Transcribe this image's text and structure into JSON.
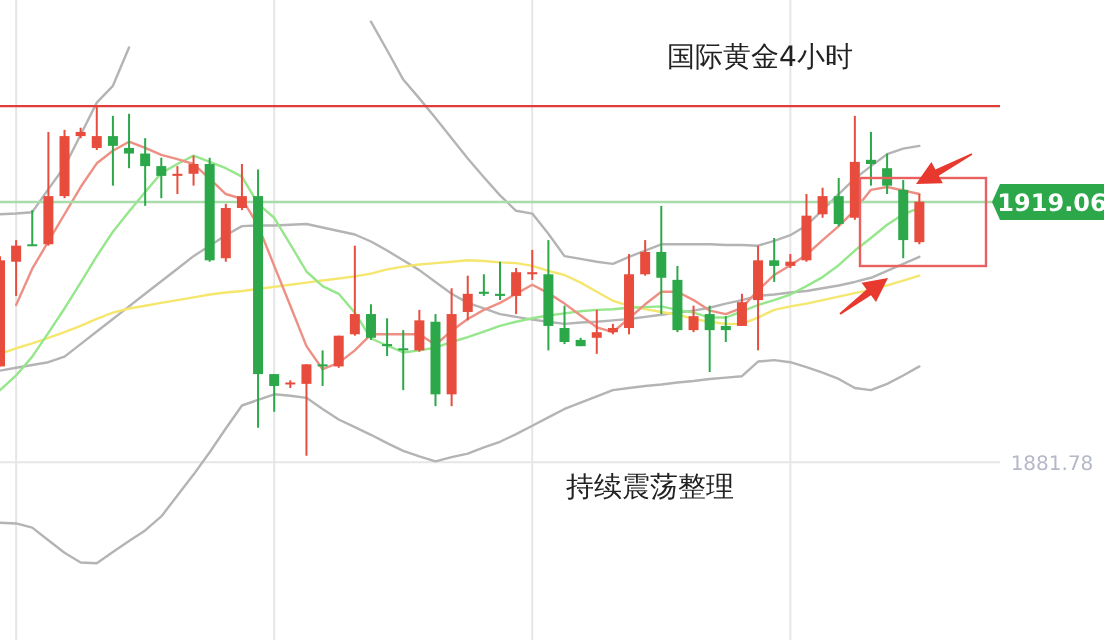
{
  "chart_data": {
    "type": "candlestick",
    "title": "国际黄金4小时",
    "annotations": [
      "持续震荡整理"
    ],
    "categories": [
      null,
      null,
      null,
      null,
      null,
      null,
      null,
      null,
      null,
      null,
      null,
      null,
      null,
      null,
      null,
      null,
      null,
      null,
      null,
      null,
      null,
      null,
      null,
      null,
      null,
      null,
      null,
      null,
      null,
      null,
      null,
      null,
      null,
      null,
      null,
      null,
      null,
      null,
      null,
      null,
      null,
      null,
      null,
      null,
      null,
      null,
      null,
      null,
      null,
      null,
      null,
      null,
      null,
      null,
      null,
      null,
      null,
      null
    ],
    "ohlc": [
      [
        1895.5,
        1911.3,
        1895.5,
        1910.7
      ],
      [
        1910.5,
        1913.6,
        1905.6,
        1912.8
      ],
      [
        1913.0,
        1917.9,
        1912.8,
        1912.8
      ],
      [
        1913.0,
        1929.1,
        1912.8,
        1919.9
      ],
      [
        1919.9,
        1929.4,
        1919.6,
        1928.5
      ],
      [
        1928.5,
        1929.7,
        1928.2,
        1929.1
      ],
      [
        1926.8,
        1932.8,
        1926.5,
        1928.5
      ],
      [
        1928.5,
        1931.4,
        1921.4,
        1927.1
      ],
      [
        1926.8,
        1931.7,
        1923.9,
        1926.0
      ],
      [
        1926.0,
        1928.2,
        1918.5,
        1924.2
      ],
      [
        1924.2,
        1925.4,
        1919.6,
        1922.8
      ],
      [
        1922.8,
        1924.2,
        1920.2,
        1923.1
      ],
      [
        1923.1,
        1925.7,
        1921.4,
        1924.5
      ],
      [
        1924.5,
        1925.4,
        1910.5,
        1910.7
      ],
      [
        1911.0,
        1918.8,
        1910.5,
        1918.2
      ],
      [
        1918.2,
        1924.5,
        1917.9,
        1919.9
      ],
      [
        1919.9,
        1923.7,
        1886.7,
        1894.4
      ],
      [
        1894.4,
        1894.4,
        1889.0,
        1892.7
      ],
      [
        1893.0,
        1893.5,
        1892.4,
        1893.2
      ],
      [
        1893.0,
        1895.8,
        1882.7,
        1895.8
      ],
      [
        1895.8,
        1897.8,
        1892.7,
        1895.5
      ],
      [
        1895.5,
        1899.9,
        1895.3,
        1899.9
      ],
      [
        1900.1,
        1912.8,
        1899.9,
        1903.0
      ],
      [
        1903.0,
        1904.4,
        1899.3,
        1899.6
      ],
      [
        1898.7,
        1902.4,
        1897.0,
        1898.4
      ],
      [
        1898.1,
        1900.7,
        1892.1,
        1897.8
      ],
      [
        1897.8,
        1903.6,
        1897.6,
        1902.1
      ],
      [
        1901.9,
        1903.0,
        1889.8,
        1891.5
      ],
      [
        1891.5,
        1906.7,
        1889.8,
        1903.0
      ],
      [
        1903.3,
        1908.5,
        1902.1,
        1905.9
      ],
      [
        1906.2,
        1908.7,
        1905.6,
        1905.9
      ],
      [
        1905.9,
        1910.5,
        1905.0,
        1905.6
      ],
      [
        1905.6,
        1909.6,
        1903.0,
        1909.0
      ],
      [
        1908.7,
        1912.2,
        1907.9,
        1909.0
      ],
      [
        1908.7,
        1913.6,
        1897.8,
        1901.3
      ],
      [
        1901.0,
        1904.2,
        1898.7,
        1899.0
      ],
      [
        1899.3,
        1899.6,
        1898.4,
        1898.4
      ],
      [
        1899.6,
        1903.6,
        1897.3,
        1900.4
      ],
      [
        1900.4,
        1901.6,
        1900.1,
        1901.0
      ],
      [
        1901.0,
        1911.6,
        1900.1,
        1908.7
      ],
      [
        1908.7,
        1913.6,
        1908.5,
        1911.9
      ],
      [
        1911.9,
        1918.5,
        1903.0,
        1908.2
      ],
      [
        1907.9,
        1909.9,
        1900.4,
        1900.7
      ],
      [
        1900.7,
        1904.2,
        1900.4,
        1902.7
      ],
      [
        1903.0,
        1904.2,
        1894.7,
        1900.7
      ],
      [
        1901.3,
        1902.7,
        1899.0,
        1900.7
      ],
      [
        1901.3,
        1905.9,
        1901.3,
        1904.7
      ],
      [
        1905.0,
        1912.8,
        1897.8,
        1910.7
      ],
      [
        1910.7,
        1913.9,
        1907.6,
        1909.9
      ],
      [
        1909.9,
        1911.6,
        1909.6,
        1910.5
      ],
      [
        1910.7,
        1920.2,
        1910.5,
        1917.1
      ],
      [
        1917.3,
        1921.1,
        1916.8,
        1919.9
      ],
      [
        1919.9,
        1922.5,
        1915.6,
        1915.9
      ],
      [
        1916.8,
        1931.4,
        1916.5,
        1924.8
      ],
      [
        1925.1,
        1929.1,
        1921.4,
        1924.5
      ],
      [
        1923.9,
        1926.0,
        1920.2,
        1921.4
      ],
      [
        1920.8,
        1922.2,
        1911.0,
        1913.6
      ],
      [
        1913.3,
        1920.2,
        1913.0,
        1919.1
      ]
    ],
    "colors": [
      "#e84c3d",
      "#e84c3d",
      "#2ca84a",
      "#e84c3d",
      "#e84c3d",
      "#e84c3d",
      "#e84c3d",
      "#2ca84a",
      "#2ca84a",
      "#2ca84a",
      "#2ca84a",
      "#e84c3d",
      "#e84c3d",
      "#2ca84a",
      "#e84c3d",
      "#e84c3d",
      "#2ca84a",
      "#2ca84a",
      "#e84c3d",
      "#e84c3d",
      "#2ca84a",
      "#e84c3d",
      "#e84c3d",
      "#2ca84a",
      "#2ca84a",
      "#2ca84a",
      "#e84c3d",
      "#2ca84a",
      "#e84c3d",
      "#e84c3d",
      "#2ca84a",
      "#2ca84a",
      "#e84c3d",
      "#e84c3d",
      "#2ca84a",
      "#2ca84a",
      "#2ca84a",
      "#e84c3d",
      "#e84c3d",
      "#e84c3d",
      "#e84c3d",
      "#2ca84a",
      "#2ca84a",
      "#e84c3d",
      "#2ca84a",
      "#2ca84a",
      "#e84c3d",
      "#e84c3d",
      "#2ca84a",
      "#e84c3d",
      "#e84c3d",
      "#e84c3d",
      "#2ca84a",
      "#e84c3d",
      "#2ca84a",
      "#2ca84a",
      "#2ca84a",
      "#e84c3d"
    ],
    "series": [
      {
        "type": "line",
        "color": "#b4b4b4",
        "values": [
          1917.3,
          1917.4,
          1917.6,
          1920.9,
          1924.1,
          1928.7,
          1933.3,
          1935.7,
          1941.2,
          null,
          null,
          null,
          null,
          null,
          null,
          null,
          null,
          null,
          null,
          null,
          null,
          null,
          null,
          1944.9,
          1940.8,
          1936.6,
          1933.9,
          1931.1,
          1928.2,
          1925.3,
          1922.6,
          1920.0,
          1917.8,
          1917.4,
          1914.5,
          1911.3,
          1910.9,
          1910.5,
          1910.2,
          1911.2,
          1912.1,
          1913.0,
          1913.0,
          1913.0,
          1913.0,
          1912.9,
          1912.9,
          1912.8,
          1913.5,
          1914.3,
          1915.7,
          1917.9,
          1920.2,
          1922.4,
          1924.2,
          1925.9,
          1926.7,
          1927.1
        ]
      },
      {
        "type": "line",
        "color": "#b4b4b4",
        "values": [
          1894.9,
          1895.3,
          1895.7,
          1896.1,
          1896.9,
          1898.7,
          1900.5,
          1902.3,
          1904.1,
          1905.9,
          1907.7,
          1909.5,
          1911.3,
          1912.8,
          1914.3,
          1915.6,
          1915.7,
          1915.7,
          1915.8,
          1915.9,
          1915.4,
          1914.9,
          1914.4,
          1913.4,
          1912.1,
          1910.7,
          1909.3,
          1907.6,
          1905.9,
          1904.6,
          1903.8,
          1903.0,
          1902.6,
          1902.2,
          1901.9,
          1901.6,
          1901.8,
          1901.9,
          1902.1,
          1902.3,
          1902.6,
          1902.9,
          1903.2,
          1903.5,
          1903.9,
          1904.5,
          1905.0,
          1905.6,
          1905.8,
          1906.1,
          1906.3,
          1906.7,
          1907.1,
          1907.6,
          1908.2,
          1909.2,
          1910.2,
          1911.2
        ]
      },
      {
        "type": "line",
        "color": "#b4b4b4",
        "values": [
          1873.1,
          1873.0,
          1872.4,
          1870.6,
          1868.8,
          1867.4,
          1867.3,
          1868.9,
          1870.5,
          1872.0,
          1874.0,
          1877.0,
          1880.0,
          1883.2,
          1886.6,
          1889.9,
          1890.7,
          1891.5,
          1891.3,
          1891.0,
          1889.4,
          1887.9,
          1886.8,
          1885.7,
          1884.5,
          1883.4,
          1882.6,
          1881.9,
          1882.5,
          1883.0,
          1883.9,
          1884.7,
          1885.8,
          1887.0,
          1888.2,
          1889.4,
          1890.3,
          1891.2,
          1892.1,
          1892.4,
          1892.7,
          1892.9,
          1893.2,
          1893.4,
          1893.7,
          1893.9,
          1894.1,
          1896.2,
          1896.4,
          1896.1,
          1895.4,
          1894.6,
          1893.7,
          1892.4,
          1892.1,
          1893.0,
          1894.2,
          1895.5
        ]
      },
      {
        "type": "line",
        "color": "#f5e66e",
        "values": [
          1897.3,
          1898.1,
          1898.8,
          1899.6,
          1900.4,
          1901.3,
          1902.3,
          1903.2,
          1903.8,
          1904.2,
          1904.6,
          1905.0,
          1905.4,
          1905.8,
          1906.1,
          1906.3,
          1906.6,
          1906.9,
          1907.2,
          1907.5,
          1907.8,
          1908.1,
          1908.4,
          1908.8,
          1909.4,
          1909.8,
          1910.1,
          1910.3,
          1910.5,
          1910.7,
          1910.6,
          1910.4,
          1910.3,
          1909.9,
          1909.2,
          1908.6,
          1907.5,
          1906.2,
          1904.9,
          1904.2,
          1903.7,
          1903.3,
          1902.9,
          1902.3,
          1901.9,
          1901.6,
          1901.6,
          1902.5,
          1903.6,
          1904.1,
          1904.5,
          1905.0,
          1905.5,
          1906.0,
          1906.5,
          1907.1,
          1907.8,
          1908.5
        ]
      },
      {
        "type": "line",
        "color": "#96e68c",
        "values": [
          1892.1,
          1894.2,
          1896.9,
          1900.3,
          1903.8,
          1907.5,
          1911.3,
          1914.8,
          1917.7,
          1920.5,
          1923.2,
          1924.5,
          1925.7,
          1924.8,
          1923.9,
          1922.7,
          1918.8,
          1916.8,
          1913.0,
          1909.1,
          1907.0,
          1905.9,
          1903.2,
          1899.5,
          1898.5,
          1897.5,
          1897.8,
          1898.2,
          1899.0,
          1899.7,
          1900.5,
          1901.3,
          1901.9,
          1902.4,
          1902.8,
          1903.1,
          1903.4,
          1903.6,
          1903.7,
          1903.9,
          1904.0,
          1904.1,
          1903.6,
          1903.2,
          1902.5,
          1902.5,
          1903.4,
          1904.3,
          1905.0,
          1905.8,
          1907.0,
          1908.3,
          1910.0,
          1912.1,
          1913.9,
          1915.8,
          1917.3,
          1918.2
        ]
      },
      {
        "type": "line",
        "color": "#ee8f84",
        "values": [
          null,
          1904.3,
          1909.5,
          1913.4,
          1917.3,
          1921.2,
          1924.6,
          1926.4,
          1927.7,
          1926.8,
          1925.8,
          1925.2,
          1924.5,
          1922.4,
          1920.2,
          1919.5,
          1915.7,
          1909.9,
          1904.2,
          1898.4,
          1895.1,
          1896.0,
          1897.8,
          1900.1,
          1900.1,
          1900.1,
          1900.1,
          1898.6,
          1900.6,
          1902.3,
          1903.6,
          1904.6,
          1905.9,
          1907.2,
          1906.0,
          1904.5,
          1902.8,
          1901.1,
          1900.4,
          1902.4,
          1904.4,
          1906.2,
          1906.2,
          1905.0,
          1903.5,
          1903.0,
          1903.9,
          1906.4,
          1908.6,
          1910.0,
          1911.5,
          1913.6,
          1915.6,
          1917.9,
          1920.8,
          1921.2,
          1920.7,
          1920.2
        ]
      }
    ],
    "ylim": [
      1856.3,
      1948.0
    ],
    "yticks": [
      1919.06,
      1881.78
    ],
    "tick_labels": "y",
    "grid": true,
    "ref_lines": [
      {
        "axis": "y",
        "value": 1932.8,
        "color": "#e03c3c"
      },
      {
        "axis": "y",
        "value": 1919.06,
        "color": "#a8dca8"
      }
    ]
  }
}
